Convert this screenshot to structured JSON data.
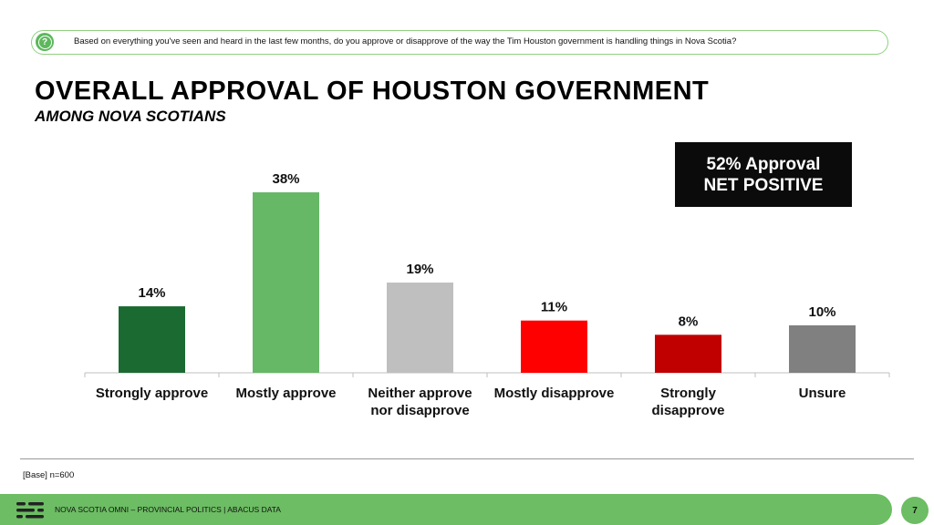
{
  "question": {
    "text": "Based on everything you've seen and heard in the last few months, do you approve or disapprove of the way the Tim Houston government is handling things in Nova Scotia?",
    "icon": "question-icon"
  },
  "title": "OVERALL APPROVAL OF HOUSTON GOVERNMENT",
  "subtitle": "AMONG NOVA SCOTIANS",
  "callout": {
    "line1": "52% Approval",
    "line2": "NET POSITIVE"
  },
  "chart_data": {
    "type": "bar",
    "categories": [
      [
        "Strongly approve"
      ],
      [
        "Mostly approve"
      ],
      [
        "Neither approve",
        "nor disapprove"
      ],
      [
        "Mostly disapprove"
      ],
      [
        "Strongly",
        "disapprove"
      ],
      [
        "Unsure"
      ]
    ],
    "values": [
      14,
      38,
      19,
      11,
      8,
      10
    ],
    "data_labels": [
      "14%",
      "38%",
      "19%",
      "11%",
      "8%",
      "10%"
    ],
    "colors": [
      "#1b6a32",
      "#66b867",
      "#bfbfbf",
      "#ff0000",
      "#c00000",
      "#808080"
    ],
    "ylim": [
      0,
      38
    ],
    "grid": false
  },
  "base_note": "[Base] n=600",
  "footer": {
    "text": "NOVA SCOTIA OMNI – PROVINCIAL POLITICS | ABACUS DATA",
    "page": "7"
  }
}
